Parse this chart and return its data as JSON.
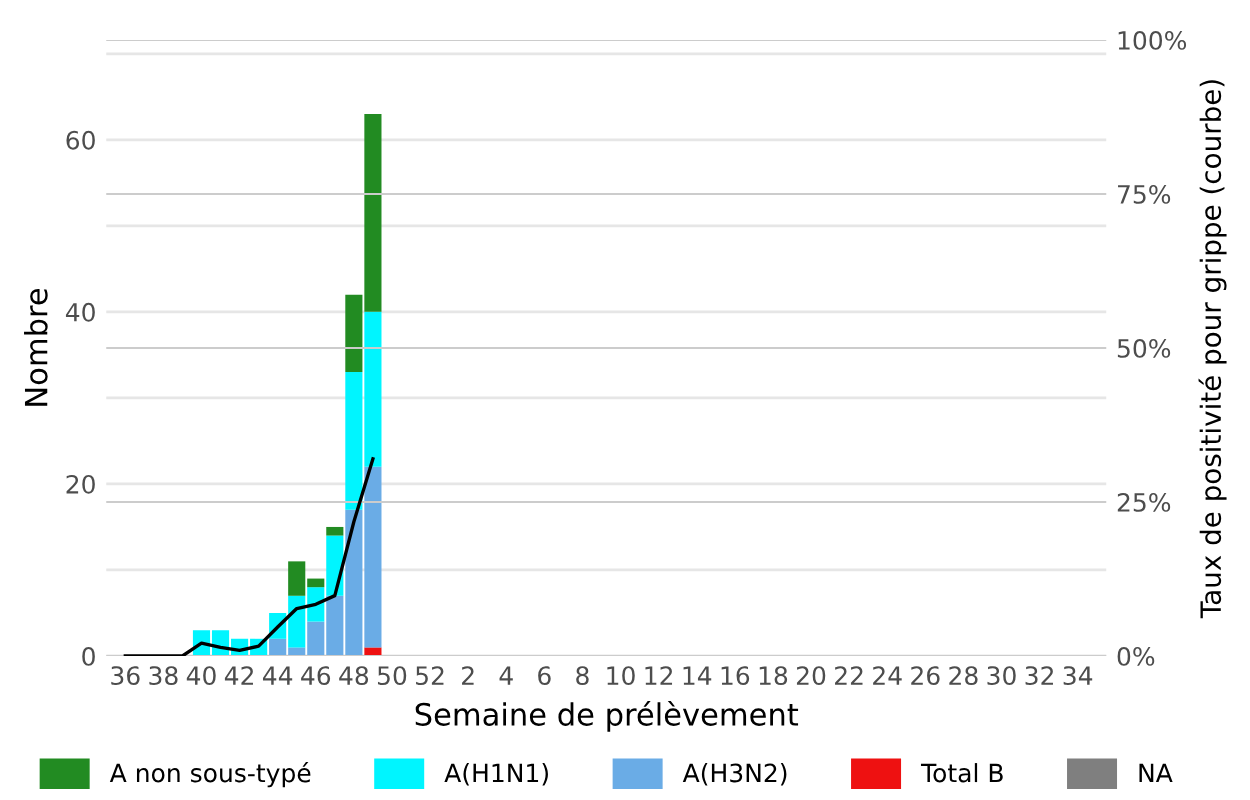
{
  "chart_data": {
    "type": "bar",
    "stacked": true,
    "xlabel": "Semaine de prélèvement",
    "ylabel": "Nombre",
    "y2label": "Taux de positivité pour grippe (courbe)",
    "categories": [
      "36",
      null,
      "38",
      null,
      "40",
      null,
      "42",
      null,
      "44",
      null,
      "46",
      null,
      "48",
      null,
      "50",
      null,
      "52",
      null,
      "2",
      null,
      "4",
      null,
      "6",
      null,
      "8",
      null,
      "10",
      null,
      "12",
      null,
      "14",
      null,
      "16",
      null,
      "18",
      null,
      "20",
      null,
      "22",
      null,
      "24",
      null,
      "26",
      null,
      "28",
      null,
      "30",
      null,
      "32",
      null,
      "34",
      null
    ],
    "series": [
      {
        "name": "NA",
        "color": "#7f7f7f",
        "values": [
          0,
          0,
          0,
          0,
          0,
          0,
          0,
          0,
          0,
          0,
          0,
          0,
          0,
          0,
          0,
          0,
          0,
          0,
          0,
          0,
          0,
          0,
          0,
          0,
          0,
          0,
          0,
          0,
          0,
          0,
          0,
          0,
          0,
          0,
          0,
          0,
          0,
          0,
          0,
          0,
          0,
          0,
          0,
          0,
          0,
          0,
          0,
          0,
          0,
          0,
          0,
          0
        ]
      },
      {
        "name": "Total B",
        "color": "#ee1111",
        "values": [
          0,
          0,
          0,
          0,
          0,
          0,
          0,
          0,
          0,
          0,
          0,
          0,
          0,
          1,
          0,
          0,
          0,
          0,
          0,
          0,
          0,
          0,
          0,
          0,
          0,
          0,
          0,
          0,
          0,
          0,
          0,
          0,
          0,
          0,
          0,
          0,
          0,
          0,
          0,
          0,
          0,
          0,
          0,
          0,
          0,
          0,
          0,
          0,
          0,
          0,
          0,
          0
        ]
      },
      {
        "name": "A(H3N2)",
        "color": "#6aace6",
        "values": [
          0,
          0,
          0,
          0,
          0,
          0,
          0,
          0,
          2,
          1,
          4,
          7,
          17,
          21,
          0,
          0,
          0,
          0,
          0,
          0,
          0,
          0,
          0,
          0,
          0,
          0,
          0,
          0,
          0,
          0,
          0,
          0,
          0,
          0,
          0,
          0,
          0,
          0,
          0,
          0,
          0,
          0,
          0,
          0,
          0,
          0,
          0,
          0,
          0,
          0,
          0,
          0
        ]
      },
      {
        "name": "A(H1N1)",
        "color": "#00f5ff",
        "values": [
          0,
          0,
          0,
          0,
          3,
          3,
          2,
          2,
          3,
          6,
          4,
          7,
          16,
          18,
          0,
          0,
          0,
          0,
          0,
          0,
          0,
          0,
          0,
          0,
          0,
          0,
          0,
          0,
          0,
          0,
          0,
          0,
          0,
          0,
          0,
          0,
          0,
          0,
          0,
          0,
          0,
          0,
          0,
          0,
          0,
          0,
          0,
          0,
          0,
          0,
          0,
          0
        ]
      },
      {
        "name": "A non sous-typé",
        "color": "#228b22",
        "values": [
          0,
          0,
          0,
          0,
          0,
          0,
          0,
          0,
          0,
          4,
          1,
          1,
          9,
          23,
          0,
          0,
          0,
          0,
          0,
          0,
          0,
          0,
          0,
          0,
          0,
          0,
          0,
          0,
          0,
          0,
          0,
          0,
          0,
          0,
          0,
          0,
          0,
          0,
          0,
          0,
          0,
          0,
          0,
          0,
          0,
          0,
          0,
          0,
          0,
          0,
          0,
          0
        ]
      },
      {
        "type": "line",
        "axis": "y2",
        "color": "#000000",
        "values": [
          0,
          0,
          0,
          0,
          2.1,
          1.4,
          0.9,
          1.6,
          4.7,
          7.7,
          8.4,
          9.8,
          21.8,
          32.0,
          null,
          null,
          null,
          null,
          null,
          null,
          null,
          null,
          null,
          null,
          null,
          null,
          null,
          null,
          null,
          null,
          null,
          null,
          null,
          null,
          null,
          null,
          null,
          null,
          null,
          null,
          null,
          null,
          null,
          null,
          null,
          null,
          null,
          null,
          null,
          null,
          null,
          null
        ]
      }
    ],
    "ylim": [
      0,
      71.6
    ],
    "yticks": [
      0,
      {
        "value": 10,
        "label": null
      },
      20,
      {
        "value": 30,
        "label": null
      },
      40,
      {
        "value": 50,
        "label": null
      },
      60,
      {
        "value": 70,
        "label": null
      }
    ],
    "y2lim": [
      0,
      100
    ],
    "y2ticks": [
      {
        "value": 0,
        "label": "0%"
      },
      {
        "value": 25,
        "label": "25%"
      },
      {
        "value": 50,
        "label": "50%"
      },
      {
        "value": 75,
        "label": "75%"
      },
      {
        "value": 100,
        "label": "100%"
      }
    ],
    "grid": true,
    "legend": "bottom"
  }
}
